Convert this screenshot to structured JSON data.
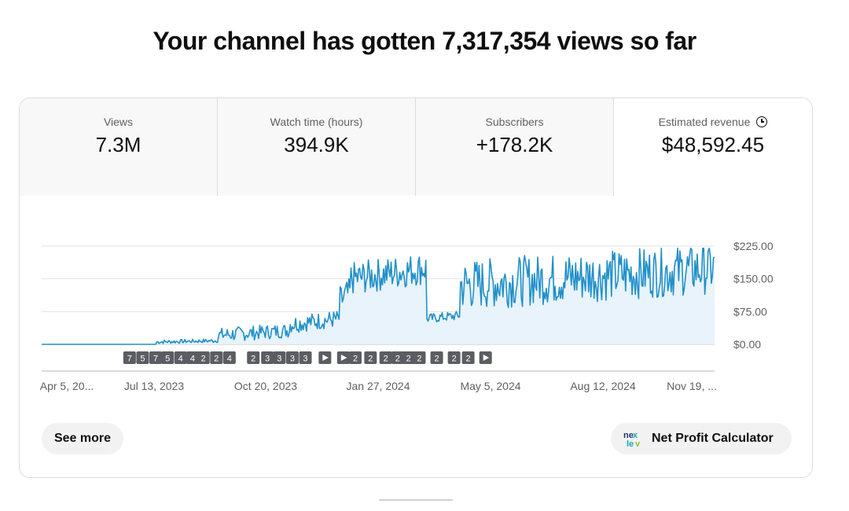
{
  "headline": "Your channel has gotten 7,317,354 views so far",
  "metrics": [
    {
      "label": "Views",
      "value": "7.3M"
    },
    {
      "label": "Watch time (hours)",
      "value": "394.9K"
    },
    {
      "label": "Subscribers",
      "value": "+178.2K"
    },
    {
      "label": "Estimated revenue",
      "value": "$48,592.45",
      "icon": "clock-icon"
    }
  ],
  "buttons": {
    "see_more": "See more",
    "net_profit": "Net Profit Calculator",
    "net_profit_icon": "nextlevel-logo-icon"
  },
  "colors": {
    "line": "#2190c9",
    "area": "#e8f3fb",
    "badge": "#5a5d61"
  },
  "chart_data": {
    "type": "area",
    "title": "",
    "xlabel": "",
    "ylabel": "",
    "ylim": [
      0,
      225
    ],
    "grid": true,
    "y_ticks": [
      "$0.00",
      "$75.00",
      "$150.00",
      "$225.00"
    ],
    "x_tick_labels": [
      "Apr 5, 20...",
      "Jul 13, 2023",
      "Oct 20, 2023",
      "Jan 27, 2024",
      "May 5, 2024",
      "Aug 12, 2024",
      "Nov 19, ..."
    ],
    "x_range": [
      "2023-04-05",
      "2024-12-15"
    ],
    "segments": [
      {
        "from": "2023-04-05",
        "to": "2023-07-20",
        "min": 0,
        "max": 0
      },
      {
        "from": "2023-07-20",
        "to": "2023-09-15",
        "min": 2,
        "max": 12
      },
      {
        "from": "2023-09-15",
        "to": "2023-11-20",
        "min": 8,
        "max": 45
      },
      {
        "from": "2023-11-20",
        "to": "2024-01-05",
        "min": 30,
        "max": 75
      },
      {
        "from": "2024-01-05",
        "to": "2024-01-15",
        "min": 70,
        "max": 150
      },
      {
        "from": "2024-01-15",
        "to": "2024-03-25",
        "min": 120,
        "max": 205
      },
      {
        "from": "2024-03-25",
        "to": "2024-04-25",
        "min": 50,
        "max": 75
      },
      {
        "from": "2024-04-25",
        "to": "2024-12-15",
        "min": 90,
        "max": 220
      }
    ],
    "annotation_markers": [
      {
        "date": "2023-06-25",
        "label": "7"
      },
      {
        "date": "2023-07-07",
        "label": "5"
      },
      {
        "date": "2023-07-19",
        "label": "7"
      },
      {
        "date": "2023-07-30",
        "label": "5"
      },
      {
        "date": "2023-08-11",
        "label": "4"
      },
      {
        "date": "2023-08-22",
        "label": "4"
      },
      {
        "date": "2023-09-01",
        "label": "2"
      },
      {
        "date": "2023-09-13",
        "label": "2"
      },
      {
        "date": "2023-09-25",
        "label": "4"
      },
      {
        "date": "2023-10-17",
        "label": "2"
      },
      {
        "date": "2023-10-30",
        "label": "3"
      },
      {
        "date": "2023-11-10",
        "label": "3"
      },
      {
        "date": "2023-11-22",
        "label": "3"
      },
      {
        "date": "2023-12-04",
        "label": "3"
      },
      {
        "date": "2023-12-22",
        "label": "play"
      },
      {
        "date": "2024-01-08",
        "label": "play"
      },
      {
        "date": "2024-01-19",
        "label": "2"
      },
      {
        "date": "2024-02-02",
        "label": "2"
      },
      {
        "date": "2024-02-16",
        "label": "2"
      },
      {
        "date": "2024-02-27",
        "label": "2"
      },
      {
        "date": "2024-03-08",
        "label": "2"
      },
      {
        "date": "2024-03-18",
        "label": "2"
      },
      {
        "date": "2024-04-03",
        "label": "2"
      },
      {
        "date": "2024-04-19",
        "label": "2"
      },
      {
        "date": "2024-05-02",
        "label": "2"
      },
      {
        "date": "2024-05-18",
        "label": "play"
      }
    ]
  }
}
